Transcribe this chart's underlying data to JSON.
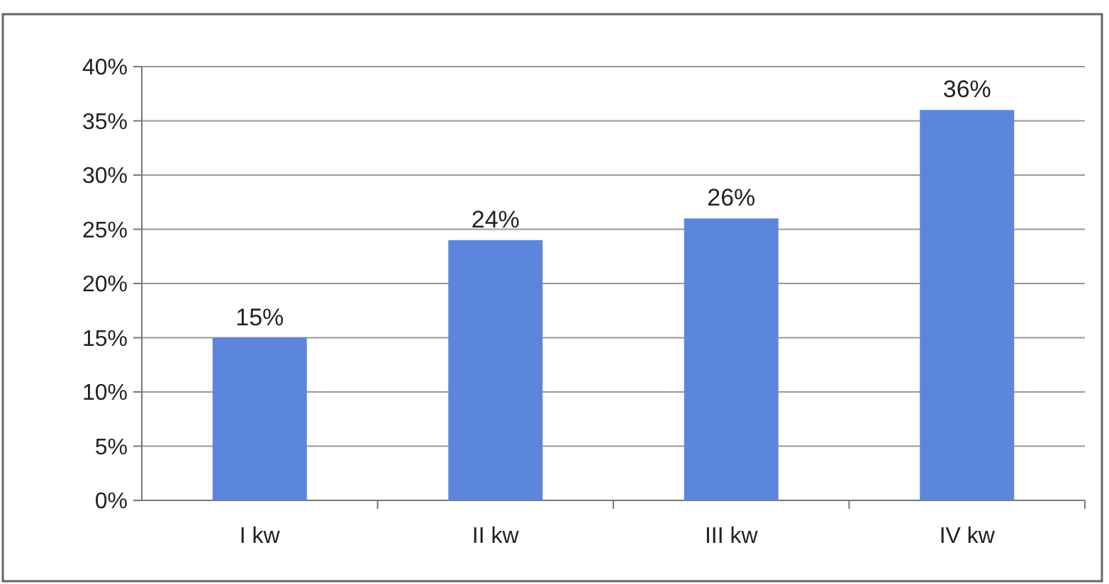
{
  "chart_data": {
    "type": "bar",
    "categories": [
      "I kw",
      "II kw",
      "III kw",
      "IV kw"
    ],
    "values": [
      15,
      24,
      26,
      36
    ],
    "color": "#5b86dc",
    "value_labels": [
      "15%",
      "24%",
      "26%",
      "36%"
    ],
    "ylim": [
      0,
      40
    ],
    "yticks": [
      {
        "value": 0,
        "label": "0%"
      },
      {
        "value": 5,
        "label": "5%"
      },
      {
        "value": 10,
        "label": "10%"
      },
      {
        "value": 15,
        "label": "15%"
      },
      {
        "value": 20,
        "label": "20%"
      },
      {
        "value": 25,
        "label": "25%"
      },
      {
        "value": 30,
        "label": "30%"
      },
      {
        "value": 35,
        "label": "35%"
      },
      {
        "value": 40,
        "label": "40%"
      }
    ],
    "grid": "y"
  }
}
